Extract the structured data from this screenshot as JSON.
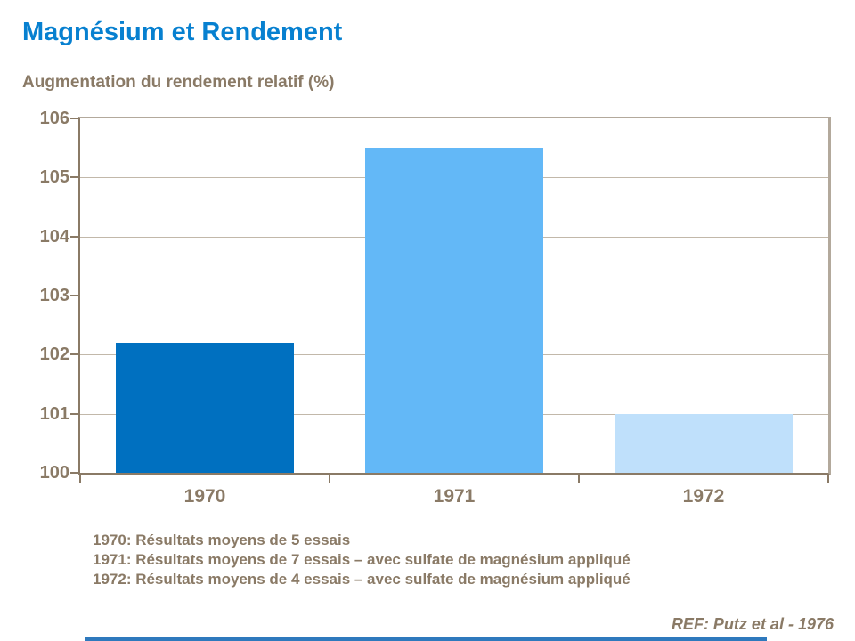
{
  "slide": {
    "title": "Magnésium et Rendement",
    "subtitle": "Augmentation du rendement relatif (%)",
    "footnotes": [
      "1970: Résultats moyens de 5 essais",
      "1971: Résultats moyens de 7 essais – avec sulfate de magnésium appliqué",
      "1972: Résultats moyens de 4 essais – avec sulfate de magnésium appliqué"
    ],
    "reference": "REF: Putz et al - 1976"
  },
  "colors": {
    "title_blue": "#0780D0",
    "text_brown": "#8A7A66",
    "gridline": "#C2B8AA",
    "plot_border": "#B3A99C",
    "axis": "#8A7A66",
    "footer_bar": "#2E79BD"
  },
  "chart_data": {
    "type": "bar",
    "title": "Augmentation du rendement relatif (%)",
    "categories": [
      "1970",
      "1971",
      "1972"
    ],
    "values": [
      102.2,
      105.5,
      101.0
    ],
    "bar_colors": [
      "#0070C0",
      "#63B8F7",
      "#BFE0FB"
    ],
    "xlabel": "",
    "ylabel": "Augmentation du rendement relatif (%)",
    "ylim": [
      100,
      106
    ],
    "ytick_step": 1,
    "yticks": [
      100,
      101,
      102,
      103,
      104,
      105,
      106
    ],
    "grid": true,
    "legend": "none"
  }
}
